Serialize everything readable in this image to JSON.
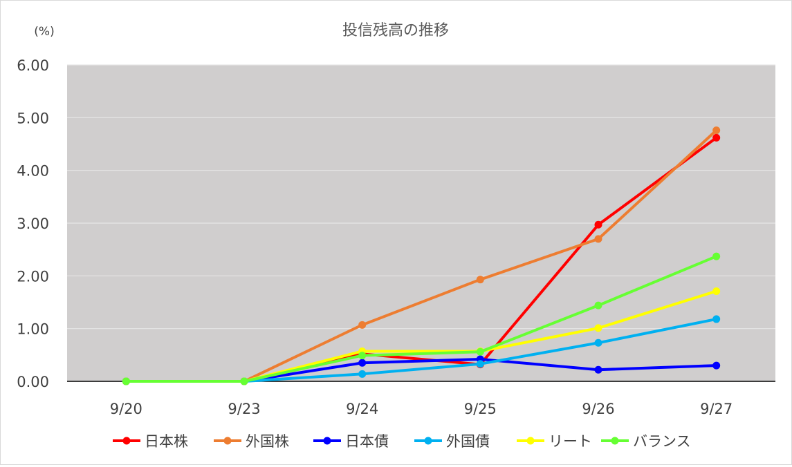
{
  "chart_data": {
    "type": "line",
    "title": "投信残高の推移",
    "ylabel": "(%)",
    "xlabel": "",
    "categories": [
      "9/20",
      "9/23",
      "9/24",
      "9/25",
      "9/26",
      "9/27"
    ],
    "ylim": [
      0,
      6
    ],
    "yticks": [
      "0.00",
      "1.00",
      "2.00",
      "3.00",
      "4.00",
      "5.00",
      "6.00"
    ],
    "grid": true,
    "legend_position": "bottom",
    "plot_background": "#d0cece",
    "series": [
      {
        "name": "日本株",
        "color": "#ff0000",
        "values": [
          0,
          0,
          0.52,
          0.32,
          2.97,
          4.62
        ]
      },
      {
        "name": "外国株",
        "color": "#ed7d31",
        "values": [
          0,
          0,
          1.07,
          1.93,
          2.7,
          4.76
        ]
      },
      {
        "name": "日本債",
        "color": "#0000ff",
        "values": [
          0,
          0,
          0.35,
          0.42,
          0.22,
          0.3
        ]
      },
      {
        "name": "外国債",
        "color": "#00b0f0",
        "values": [
          0,
          0,
          0.14,
          0.33,
          0.73,
          1.18
        ]
      },
      {
        "name": "リート",
        "color": "#ffff00",
        "values": [
          0,
          0,
          0.57,
          0.57,
          1.01,
          1.71
        ]
      },
      {
        "name": "バランス",
        "color": "#66ff33",
        "values": [
          0,
          0,
          0.49,
          0.56,
          1.44,
          2.37
        ]
      }
    ]
  }
}
